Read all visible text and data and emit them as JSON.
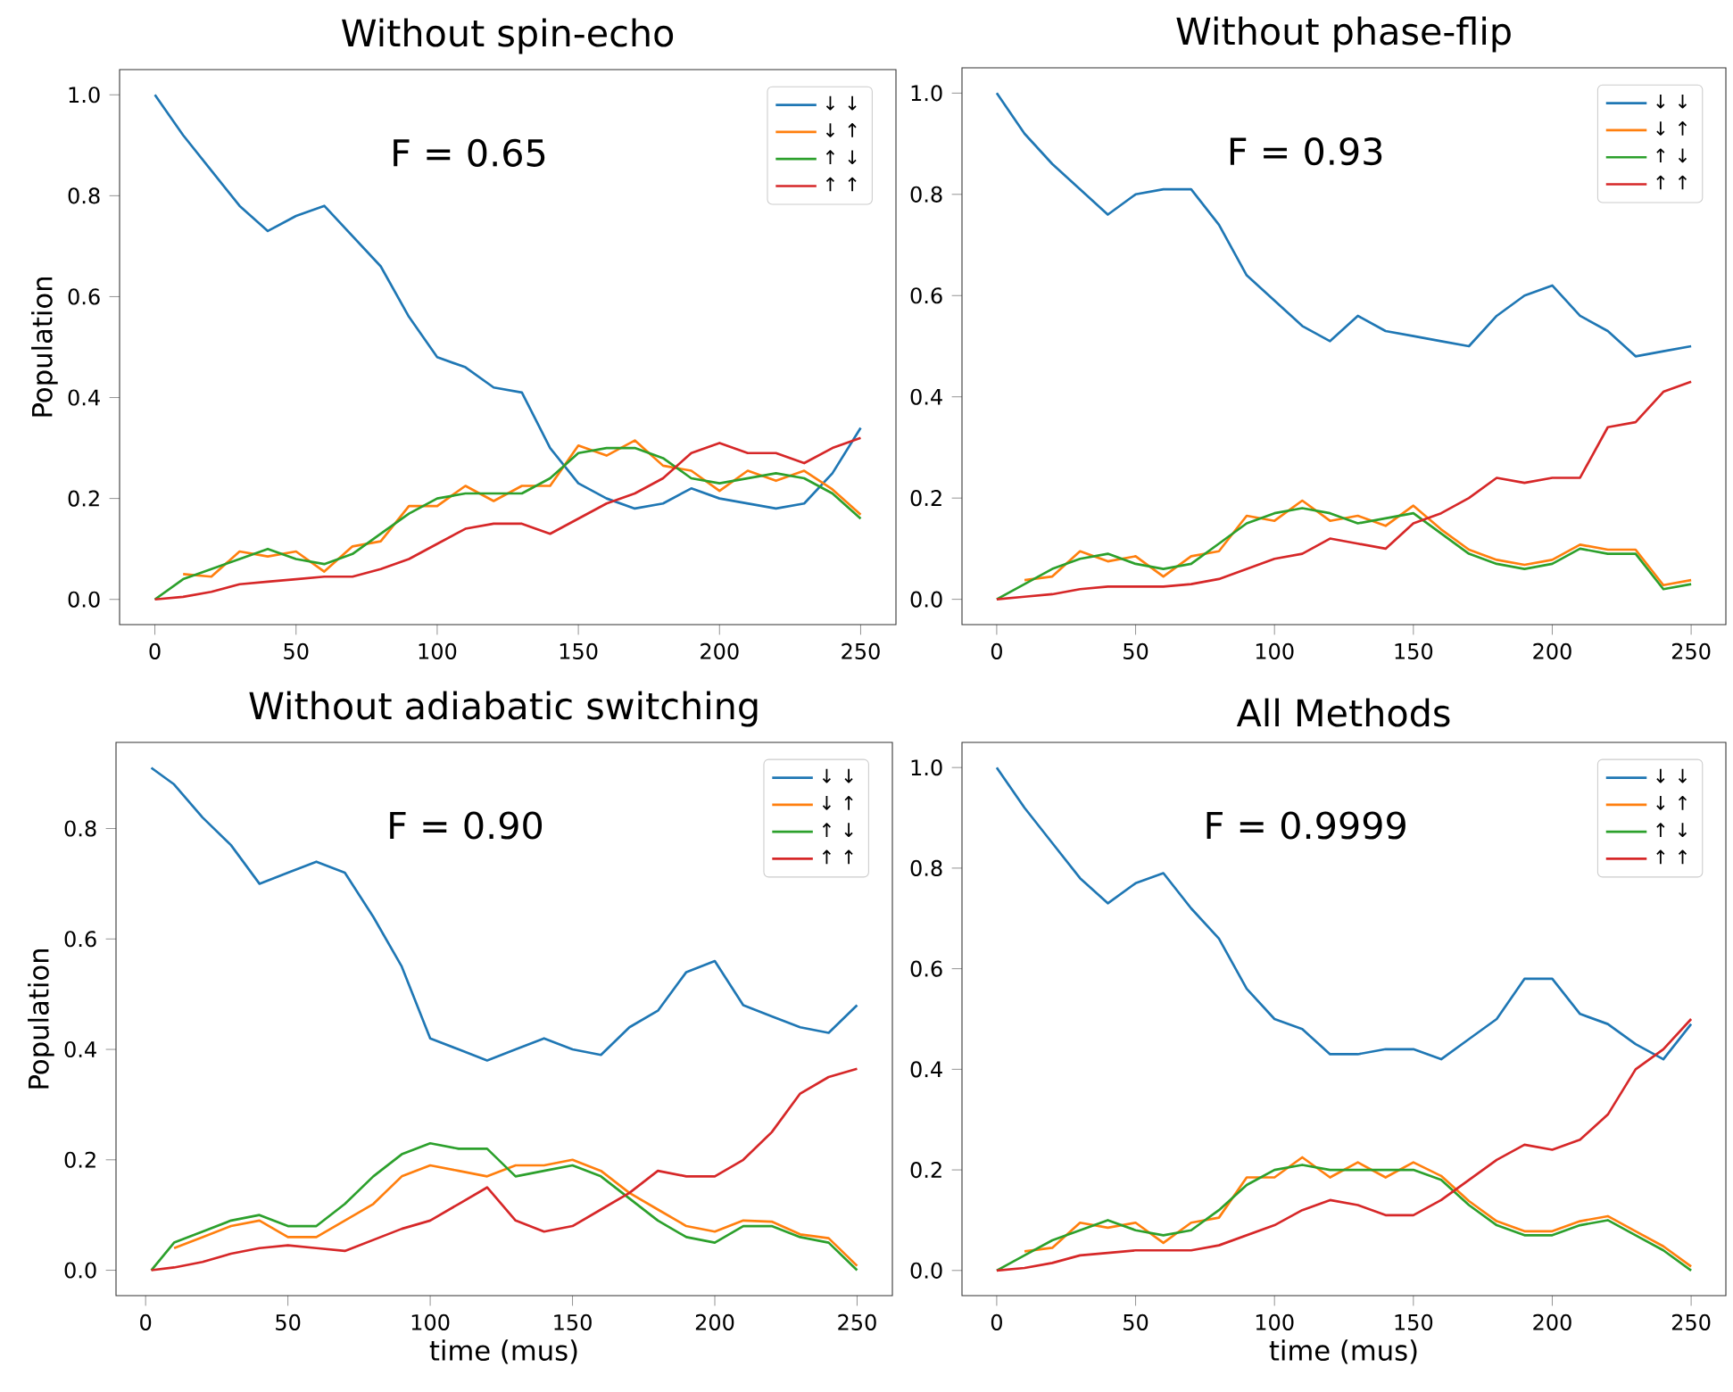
{
  "chart_data": [
    {
      "type": "line",
      "title": "Without spin-echo",
      "ylabel": "Population",
      "annotations": [
        "F = 0.65"
      ],
      "legend": "top right",
      "x": [
        0,
        10,
        20,
        30,
        40,
        50,
        60,
        70,
        80,
        90,
        100,
        110,
        120,
        130,
        140,
        150,
        160,
        170,
        180,
        190,
        200,
        210,
        220,
        230,
        240,
        250
      ],
      "xlim": [
        -12.5,
        262.5
      ],
      "ylim": [
        -0.05,
        1.05
      ],
      "xticks": [
        0,
        50,
        100,
        150,
        200,
        250
      ],
      "yticks": [
        {
          "value": 0,
          "label": "0.0"
        },
        {
          "value": 0.2,
          "label": "0.2"
        },
        {
          "value": 0.4,
          "label": "0.4"
        },
        {
          "value": 0.6,
          "label": "0.6"
        },
        {
          "value": 0.8,
          "label": "0.8"
        },
        {
          "value": 1,
          "label": "1.0"
        }
      ],
      "series": [
        {
          "name": "↓ ↓",
          "color": "#1f77b4",
          "values": [
            1.0,
            0.92,
            0.85,
            0.78,
            0.73,
            0.76,
            0.78,
            0.72,
            0.66,
            0.56,
            0.48,
            0.46,
            0.42,
            0.41,
            0.3,
            0.23,
            0.2,
            0.18,
            0.19,
            0.22,
            0.2,
            0.19,
            0.18,
            0.19,
            0.25,
            0.34
          ]
        },
        {
          "name": "↓ ↑",
          "color": "#ff7f0e",
          "values": [
            null,
            0.05,
            0.045,
            0.095,
            0.085,
            0.095,
            0.055,
            0.105,
            0.115,
            0.185,
            0.185,
            0.225,
            0.195,
            0.225,
            0.225,
            0.305,
            0.285,
            0.315,
            0.265,
            0.255,
            0.215,
            0.255,
            0.235,
            0.255,
            0.218,
            0.168
          ]
        },
        {
          "name": "↑ ↓",
          "color": "#2ca02c",
          "values": [
            0,
            0.04,
            0.06,
            0.08,
            0.1,
            0.08,
            0.07,
            0.09,
            0.13,
            0.17,
            0.2,
            0.21,
            0.21,
            0.21,
            0.24,
            0.29,
            0.3,
            0.3,
            0.28,
            0.24,
            0.23,
            0.24,
            0.25,
            0.24,
            0.21,
            0.16
          ]
        },
        {
          "name": "↑ ↑",
          "color": "#d62728",
          "values": [
            0,
            0.005,
            0.015,
            0.03,
            0.035,
            0.04,
            0.045,
            0.045,
            0.06,
            0.08,
            0.11,
            0.14,
            0.15,
            0.15,
            0.13,
            0.16,
            0.19,
            0.21,
            0.24,
            0.29,
            0.31,
            0.29,
            0.29,
            0.27,
            0.3,
            0.32
          ]
        }
      ]
    },
    {
      "type": "line",
      "title": "Without phase-flip",
      "annotations": [
        "F = 0.93"
      ],
      "legend": "top right",
      "x": [
        0,
        10,
        20,
        30,
        40,
        50,
        60,
        70,
        80,
        90,
        100,
        110,
        120,
        130,
        140,
        150,
        160,
        170,
        180,
        190,
        200,
        210,
        220,
        230,
        240,
        250
      ],
      "xlim": [
        -12.5,
        262.5
      ],
      "ylim": [
        -0.05,
        1.05
      ],
      "xticks": [
        0,
        50,
        100,
        150,
        200,
        250
      ],
      "yticks": [
        {
          "value": 0,
          "label": "0.0"
        },
        {
          "value": 0.2,
          "label": "0.2"
        },
        {
          "value": 0.4,
          "label": "0.4"
        },
        {
          "value": 0.6,
          "label": "0.6"
        },
        {
          "value": 0.8,
          "label": "0.8"
        },
        {
          "value": 1,
          "label": "1.0"
        }
      ],
      "series": [
        {
          "name": "↓ ↓",
          "color": "#1f77b4",
          "values": [
            1.0,
            0.92,
            0.86,
            0.81,
            0.76,
            0.8,
            0.81,
            0.81,
            0.74,
            0.64,
            0.59,
            0.54,
            0.51,
            0.56,
            0.53,
            0.52,
            0.51,
            0.5,
            0.56,
            0.6,
            0.62,
            0.56,
            0.53,
            0.48,
            0.49,
            0.5
          ]
        },
        {
          "name": "↓ ↑",
          "color": "#ff7f0e",
          "values": [
            null,
            0.038,
            0.045,
            0.095,
            0.075,
            0.085,
            0.045,
            0.085,
            0.095,
            0.165,
            0.155,
            0.195,
            0.155,
            0.165,
            0.145,
            0.185,
            0.138,
            0.098,
            0.078,
            0.068,
            0.078,
            0.108,
            0.098,
            0.098,
            0.028,
            0.038
          ]
        },
        {
          "name": "↑ ↓",
          "color": "#2ca02c",
          "values": [
            0,
            0.03,
            0.06,
            0.08,
            0.09,
            0.07,
            0.06,
            0.07,
            0.11,
            0.15,
            0.17,
            0.18,
            0.17,
            0.15,
            0.16,
            0.17,
            0.13,
            0.09,
            0.07,
            0.06,
            0.07,
            0.1,
            0.09,
            0.09,
            0.02,
            0.03
          ]
        },
        {
          "name": "↑ ↑",
          "color": "#d62728",
          "values": [
            0,
            0.005,
            0.01,
            0.02,
            0.025,
            0.025,
            0.025,
            0.03,
            0.04,
            0.06,
            0.08,
            0.09,
            0.12,
            0.11,
            0.1,
            0.15,
            0.17,
            0.2,
            0.24,
            0.23,
            0.24,
            0.24,
            0.34,
            0.35,
            0.41,
            0.43
          ]
        }
      ]
    },
    {
      "type": "line",
      "title": "Without adiabatic switching",
      "ylabel": "Population",
      "xlabel": "time (mus)",
      "annotations": [
        "F = 0.90"
      ],
      "legend": "top right",
      "x": [
        2,
        10,
        20,
        30,
        40,
        50,
        60,
        70,
        80,
        90,
        100,
        110,
        120,
        130,
        140,
        150,
        160,
        170,
        180,
        190,
        200,
        210,
        220,
        230,
        240,
        250
      ],
      "xlim": [
        -10.4,
        262.4
      ],
      "ylim": [
        -0.046,
        0.956
      ],
      "xticks": [
        0,
        50,
        100,
        150,
        200,
        250
      ],
      "yticks": [
        {
          "value": 0,
          "label": "0.0"
        },
        {
          "value": 0.2,
          "label": "0.2"
        },
        {
          "value": 0.4,
          "label": "0.4"
        },
        {
          "value": 0.6,
          "label": "0.6"
        },
        {
          "value": 0.8,
          "label": "0.8"
        }
      ],
      "series": [
        {
          "name": "↓ ↓",
          "color": "#1f77b4",
          "values": [
            0.91,
            0.88,
            0.82,
            0.77,
            0.7,
            0.72,
            0.74,
            0.72,
            0.64,
            0.55,
            0.42,
            0.4,
            0.38,
            0.4,
            0.42,
            0.4,
            0.39,
            0.44,
            0.47,
            0.54,
            0.56,
            0.48,
            0.46,
            0.44,
            0.43,
            0.48
          ]
        },
        {
          "name": "↓ ↑",
          "color": "#ff7f0e",
          "values": [
            null,
            0.04,
            0.06,
            0.08,
            0.09,
            0.06,
            0.06,
            0.09,
            0.12,
            0.17,
            0.19,
            0.18,
            0.17,
            0.19,
            0.19,
            0.2,
            0.18,
            0.14,
            0.11,
            0.08,
            0.07,
            0.09,
            0.088,
            0.065,
            0.058,
            0.008
          ]
        },
        {
          "name": "↑ ↓",
          "color": "#2ca02c",
          "values": [
            0,
            0.05,
            0.07,
            0.09,
            0.1,
            0.08,
            0.08,
            0.12,
            0.17,
            0.21,
            0.23,
            0.22,
            0.22,
            0.17,
            0.18,
            0.19,
            0.17,
            0.13,
            0.09,
            0.06,
            0.05,
            0.08,
            0.08,
            0.06,
            0.05,
            0.0
          ]
        },
        {
          "name": "↑ ↑",
          "color": "#d62728",
          "values": [
            0,
            0.005,
            0.015,
            0.03,
            0.04,
            0.045,
            0.04,
            0.035,
            0.055,
            0.075,
            0.09,
            0.12,
            0.15,
            0.09,
            0.07,
            0.08,
            0.11,
            0.14,
            0.18,
            0.17,
            0.17,
            0.2,
            0.25,
            0.32,
            0.35,
            0.365
          ]
        }
      ]
    },
    {
      "type": "line",
      "title": "All Methods",
      "xlabel": "time (mus)",
      "annotations": [
        "F = 0.9999"
      ],
      "legend": "top right",
      "x": [
        0,
        10,
        20,
        30,
        40,
        50,
        60,
        70,
        80,
        90,
        100,
        110,
        120,
        130,
        140,
        150,
        160,
        170,
        180,
        190,
        200,
        210,
        220,
        230,
        240,
        250
      ],
      "xlim": [
        -12.5,
        262.5
      ],
      "ylim": [
        -0.05,
        1.05
      ],
      "xticks": [
        0,
        50,
        100,
        150,
        200,
        250
      ],
      "yticks": [
        {
          "value": 0,
          "label": "0.0"
        },
        {
          "value": 0.2,
          "label": "0.2"
        },
        {
          "value": 0.4,
          "label": "0.4"
        },
        {
          "value": 0.6,
          "label": "0.6"
        },
        {
          "value": 0.8,
          "label": "0.8"
        },
        {
          "value": 1,
          "label": "1.0"
        }
      ],
      "series": [
        {
          "name": "↓ ↓",
          "color": "#1f77b4",
          "values": [
            1.0,
            0.92,
            0.85,
            0.78,
            0.73,
            0.77,
            0.79,
            0.72,
            0.66,
            0.56,
            0.5,
            0.48,
            0.43,
            0.43,
            0.44,
            0.44,
            0.42,
            0.46,
            0.5,
            0.58,
            0.58,
            0.51,
            0.49,
            0.45,
            0.42,
            0.49
          ]
        },
        {
          "name": "↓ ↑",
          "color": "#ff7f0e",
          "values": [
            null,
            0.038,
            0.045,
            0.095,
            0.085,
            0.095,
            0.055,
            0.095,
            0.105,
            0.185,
            0.185,
            0.225,
            0.185,
            0.215,
            0.185,
            0.215,
            0.188,
            0.138,
            0.098,
            0.078,
            0.078,
            0.098,
            0.108,
            0.078,
            0.048,
            0.008
          ]
        },
        {
          "name": "↑ ↓",
          "color": "#2ca02c",
          "values": [
            0,
            0.03,
            0.06,
            0.08,
            0.1,
            0.08,
            0.07,
            0.08,
            0.12,
            0.17,
            0.2,
            0.21,
            0.2,
            0.2,
            0.2,
            0.2,
            0.18,
            0.13,
            0.09,
            0.07,
            0.07,
            0.09,
            0.1,
            0.07,
            0.04,
            0.0
          ]
        },
        {
          "name": "↑ ↑",
          "color": "#d62728",
          "values": [
            0,
            0.005,
            0.015,
            0.03,
            0.035,
            0.04,
            0.04,
            0.04,
            0.05,
            0.07,
            0.09,
            0.12,
            0.14,
            0.13,
            0.11,
            0.11,
            0.14,
            0.18,
            0.22,
            0.25,
            0.24,
            0.26,
            0.31,
            0.4,
            0.44,
            0.5
          ]
        }
      ]
    }
  ]
}
